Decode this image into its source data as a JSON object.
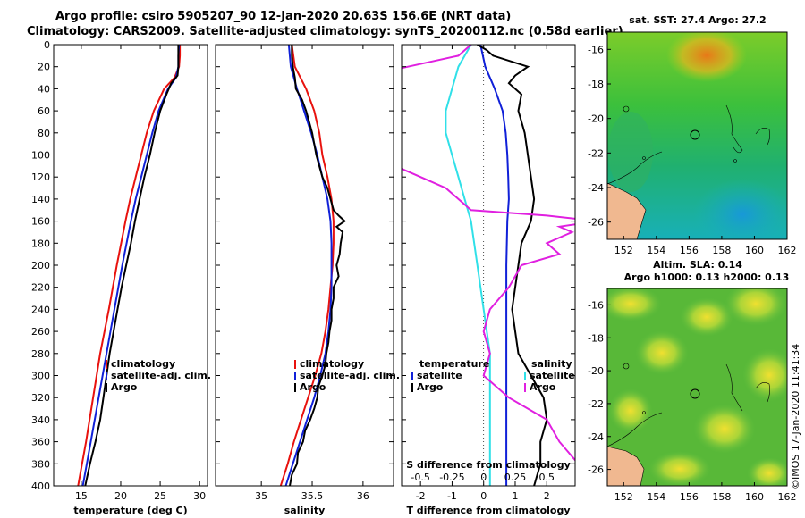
{
  "title_line1": "Argo profile: csiro 5905207_90 12-Jan-2020 20.63S 156.6E (NRT data)",
  "title_line2": "Climatology: CARS2009. Satellite-adjusted climatology: synTS_20200112.nc (0.58d earlier)",
  "sst_title": "sat. SST: 27.4 Argo: 27.2",
  "sla_title1": "Altim. SLA: 0.14",
  "sla_title2": "Argo h1000: 0.13 h2000: 0.13",
  "watermark": "©IMOS 17-Jan-2020 11:41:34",
  "colors": {
    "climatology": "#e8120e",
    "satellite": "#1020d8",
    "argo": "#000000",
    "s_diff": "#e020e0",
    "sat_s": "#30e0e8"
  },
  "chart_data": [
    {
      "type": "line",
      "name": "temperature",
      "xlabel": "temperature (deg C)",
      "ylabel": "",
      "xlim": [
        11.5,
        31
      ],
      "ylim": [
        400,
        0
      ],
      "xticks": [
        15,
        20,
        25,
        30
      ],
      "yticks": [
        0,
        20,
        40,
        60,
        80,
        100,
        120,
        140,
        160,
        180,
        200,
        220,
        240,
        260,
        280,
        300,
        320,
        340,
        360,
        380,
        400
      ],
      "legend": [
        "climatology",
        "satellite-adj. clim.",
        "Argo"
      ],
      "legend_position": "lower-right",
      "series": [
        {
          "name": "climatology",
          "depth": [
            0,
            10,
            20,
            30,
            40,
            60,
            80,
            100,
            120,
            140,
            160,
            200,
            240,
            280,
            320,
            360,
            400
          ],
          "values": [
            27.5,
            27.5,
            27.4,
            26.8,
            25.5,
            24.2,
            23.3,
            22.6,
            21.9,
            21.2,
            20.6,
            19.5,
            18.5,
            17.4,
            16.5,
            15.6,
            14.6
          ]
        },
        {
          "name": "satellite-adj. clim.",
          "depth": [
            0,
            10,
            20,
            30,
            40,
            60,
            80,
            100,
            120,
            140,
            160,
            200,
            240,
            280,
            320,
            360,
            400
          ],
          "values": [
            27.4,
            27.3,
            27.3,
            27.0,
            26.0,
            24.8,
            24.0,
            23.3,
            22.6,
            21.9,
            21.3,
            20.2,
            19.2,
            18.2,
            17.2,
            16.2,
            15.2
          ]
        },
        {
          "name": "Argo",
          "depth": [
            0,
            10,
            20,
            28,
            35,
            45,
            60,
            80,
            100,
            120,
            140,
            160,
            180,
            200,
            220,
            240,
            260,
            280,
            300,
            320,
            340,
            360,
            380,
            400
          ],
          "values": [
            27.3,
            27.3,
            27.3,
            27.2,
            26.4,
            25.8,
            25.0,
            24.3,
            23.7,
            23.0,
            22.4,
            21.8,
            21.3,
            20.7,
            20.1,
            19.6,
            19.1,
            18.6,
            18.2,
            17.8,
            17.4,
            16.8,
            16.1,
            15.5
          ]
        }
      ]
    },
    {
      "type": "line",
      "name": "salinity",
      "xlabel": "salinity",
      "ylabel": "",
      "xlim": [
        34.55,
        36.3
      ],
      "ylim": [
        400,
        0
      ],
      "xticks": [
        35,
        35.5,
        36
      ],
      "legend": [
        "climatology",
        "satellite-adj. clim.",
        "Argo"
      ],
      "legend_position": "lower-right",
      "series": [
        {
          "name": "climatology",
          "depth": [
            0,
            20,
            40,
            60,
            80,
            100,
            120,
            140,
            160,
            180,
            200,
            220,
            240,
            260,
            280,
            300,
            320,
            340,
            360,
            380,
            400
          ],
          "values": [
            35.3,
            35.33,
            35.44,
            35.52,
            35.57,
            35.6,
            35.65,
            35.69,
            35.71,
            35.71,
            35.7,
            35.68,
            35.66,
            35.63,
            35.59,
            35.53,
            35.46,
            35.39,
            35.32,
            35.26,
            35.19
          ]
        },
        {
          "name": "satellite-adj. clim.",
          "depth": [
            0,
            20,
            40,
            60,
            80,
            100,
            120,
            140,
            160,
            180,
            200,
            220,
            240,
            260,
            280,
            300,
            320,
            340,
            360,
            380,
            400
          ],
          "values": [
            35.27,
            35.29,
            35.35,
            35.42,
            35.49,
            35.55,
            35.6,
            35.65,
            35.68,
            35.69,
            35.69,
            35.69,
            35.68,
            35.66,
            35.63,
            35.58,
            35.52,
            35.45,
            35.38,
            35.31,
            35.24
          ]
        },
        {
          "name": "Argo",
          "depth": [
            0,
            10,
            20,
            30,
            40,
            50,
            60,
            70,
            80,
            90,
            100,
            110,
            120,
            130,
            140,
            150,
            155,
            160,
            165,
            170,
            180,
            190,
            200,
            210,
            220,
            230,
            240,
            250,
            260,
            270,
            280,
            290,
            300,
            310,
            320,
            330,
            340,
            350,
            360,
            370,
            380,
            390,
            400
          ],
          "values": [
            35.3,
            35.3,
            35.31,
            35.33,
            35.34,
            35.4,
            35.44,
            35.47,
            35.5,
            35.52,
            35.54,
            35.57,
            35.6,
            35.65,
            35.68,
            35.71,
            35.76,
            35.82,
            35.74,
            35.8,
            35.78,
            35.77,
            35.74,
            35.76,
            35.71,
            35.71,
            35.69,
            35.69,
            35.67,
            35.66,
            35.64,
            35.63,
            35.6,
            35.56,
            35.55,
            35.52,
            35.48,
            35.43,
            35.41,
            35.36,
            35.35,
            35.3,
            35.28
          ]
        }
      ]
    },
    {
      "type": "line",
      "name": "differences",
      "xlabel": "T difference from climatology",
      "xlabel_top": "S difference from climatology",
      "xlim": [
        -2.6,
        2.9
      ],
      "ylim": [
        400,
        0
      ],
      "xticks": [
        -2,
        -1,
        0,
        1,
        2
      ],
      "s_xticks": [
        "-0.5",
        "-0.25",
        "0",
        "0.25",
        "0.5"
      ],
      "s_xtick_positions_T_units": [
        -2,
        -1,
        0,
        1,
        2
      ],
      "legend": {
        "temperature": [
          "satellite",
          "Argo"
        ],
        "salinity": [
          "satellite",
          "Argo"
        ],
        "temperature_title": "temperature",
        "salinity_title": "salinity"
      },
      "series": [
        {
          "name": "T satellite",
          "depth": [
            0,
            20,
            40,
            60,
            80,
            100,
            120,
            140,
            160,
            200,
            240,
            280,
            320,
            360,
            400
          ],
          "values": [
            -0.1,
            0.05,
            0.35,
            0.6,
            0.7,
            0.75,
            0.78,
            0.8,
            0.75,
            0.72,
            0.72,
            0.72,
            0.72,
            0.72,
            0.72
          ]
        },
        {
          "name": "T Argo",
          "depth": [
            0,
            5,
            10,
            20,
            28,
            35,
            45,
            60,
            80,
            100,
            120,
            140,
            160,
            180,
            200,
            220,
            240,
            260,
            280,
            300,
            320,
            340,
            360,
            380,
            400
          ],
          "values": [
            -0.2,
            0.1,
            0.3,
            1.4,
            1.0,
            0.8,
            1.2,
            1.1,
            1.3,
            1.4,
            1.5,
            1.6,
            1.5,
            1.2,
            1.1,
            1.0,
            0.9,
            1.0,
            1.1,
            1.5,
            1.9,
            2.0,
            1.8,
            1.8,
            1.6
          ]
        },
        {
          "name": "S satellite",
          "depth": [
            0,
            20,
            40,
            60,
            80,
            100,
            120,
            140,
            160,
            200,
            240,
            280,
            320,
            360,
            400
          ],
          "values": [
            -0.1,
            -0.2,
            -0.25,
            -0.3,
            -0.3,
            -0.25,
            -0.2,
            -0.15,
            -0.1,
            -0.05,
            0.0,
            0.05,
            0.05,
            0.05,
            0.05
          ]
        },
        {
          "name": "S Argo",
          "depth": [
            0,
            10,
            20,
            30,
            40,
            50,
            60,
            70,
            80,
            90,
            100,
            110,
            120,
            130,
            140,
            150,
            155,
            160,
            165,
            170,
            180,
            190,
            200,
            220,
            240,
            260,
            280,
            300,
            320,
            340,
            360,
            380,
            400
          ],
          "values": [
            -0.1,
            -0.2,
            -0.6,
            -1.0,
            -1.3,
            -1.1,
            -1.3,
            -1.1,
            -1.0,
            -0.9,
            -0.8,
            -0.7,
            -0.5,
            -0.3,
            -0.2,
            -0.1,
            0.5,
            0.9,
            0.6,
            0.7,
            0.5,
            0.6,
            0.3,
            0.2,
            0.05,
            0.0,
            0.05,
            0.0,
            0.2,
            0.5,
            0.6,
            0.75,
            0.9
          ]
        }
      ]
    },
    {
      "type": "heatmap",
      "name": "sst_map",
      "title": "sat. SST: 27.4 Argo: 27.2",
      "xticks": [
        "152",
        "154",
        "156",
        "158",
        "160",
        "162"
      ],
      "yticks": [
        "-16",
        "-18",
        "-20",
        "-22",
        "-24",
        "-26"
      ],
      "xlim": [
        151,
        162
      ],
      "ylim": [
        -27,
        -15
      ],
      "argo_position": [
        156.6,
        -20.63
      ]
    },
    {
      "type": "heatmap",
      "name": "sla_map",
      "title": "Altim. SLA: 0.14",
      "xticks": [
        "152",
        "154",
        "156",
        "158",
        "160",
        "162"
      ],
      "yticks": [
        "-16",
        "-18",
        "-20",
        "-22",
        "-24",
        "-26"
      ],
      "xlim": [
        151,
        162
      ],
      "ylim": [
        -27,
        -15
      ],
      "argo_position": [
        156.6,
        -20.63
      ]
    }
  ]
}
